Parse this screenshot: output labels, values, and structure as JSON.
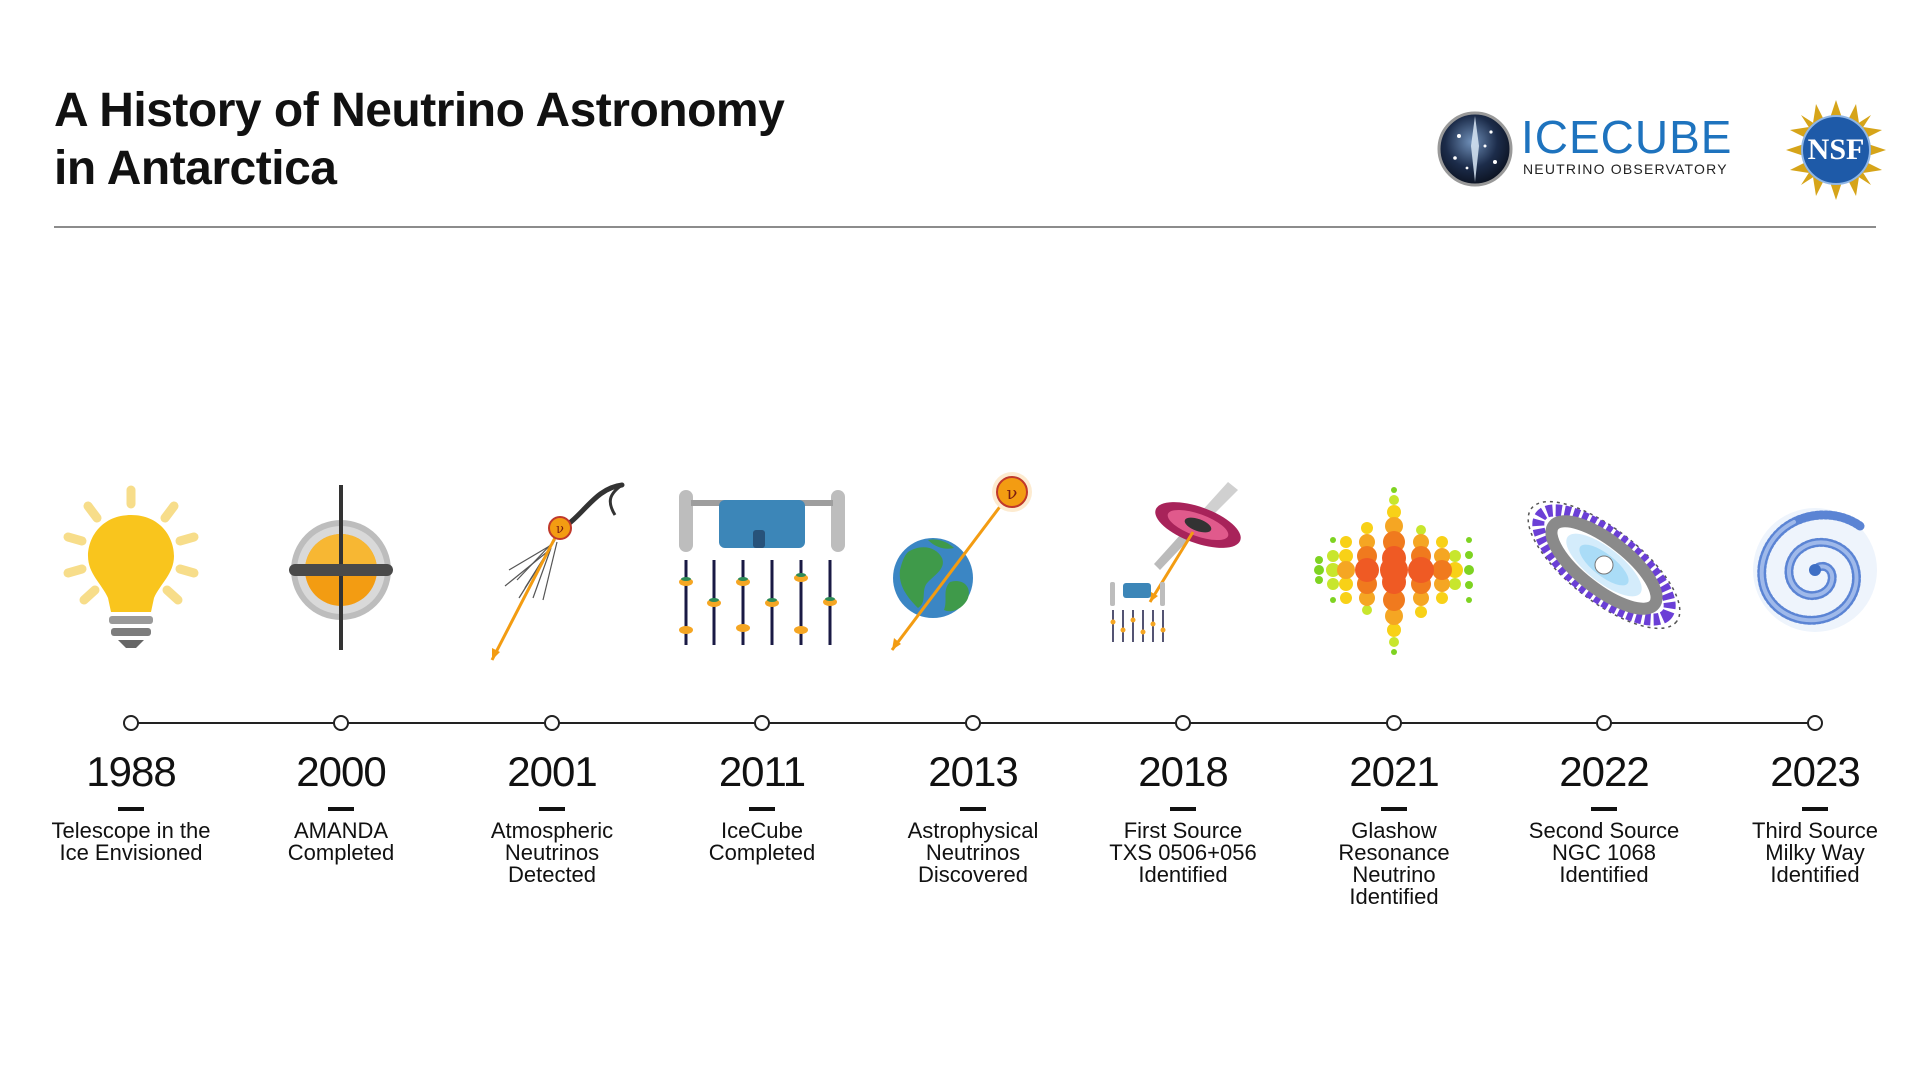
{
  "header": {
    "title_line1": "A History of Neutrino Astronomy",
    "title_line2": "in Antarctica"
  },
  "logos": {
    "icecube_name": "ICECUBE",
    "icecube_sub": "NEUTRINO OBSERVATORY",
    "nsf": "NSF"
  },
  "colors": {
    "accent_blue": "#1e73be",
    "orange": "#f39c12",
    "yellow": "#f9c51d",
    "neutrino_red": "#c0392b"
  },
  "events": [
    {
      "year": "1988",
      "lines": [
        "Telescope in the",
        "Ice Envisioned"
      ],
      "icon": "lightbulb-icon"
    },
    {
      "year": "2000",
      "lines": [
        "AMANDA",
        "Completed"
      ],
      "icon": "amanda-detector-icon"
    },
    {
      "year": "2001",
      "lines": [
        "Atmospheric",
        "Neutrinos",
        "Detected"
      ],
      "icon": "atmospheric-shower-icon"
    },
    {
      "year": "2011",
      "lines": [
        "IceCube",
        "Completed"
      ],
      "icon": "icecube-array-icon"
    },
    {
      "year": "2013",
      "lines": [
        "Astrophysical",
        "Neutrinos",
        "Discovered"
      ],
      "icon": "earth-neutrino-icon"
    },
    {
      "year": "2018",
      "lines": [
        "First Source",
        "TXS 0506+056",
        "Identified"
      ],
      "icon": "blazar-icon"
    },
    {
      "year": "2021",
      "lines": [
        "Glashow",
        "Resonance",
        "Neutrino",
        "Identified"
      ],
      "icon": "glashow-event-icon"
    },
    {
      "year": "2022",
      "lines": [
        "Second Source",
        "NGC 1068",
        "Identified"
      ],
      "icon": "seyfert-galaxy-icon"
    },
    {
      "year": "2023",
      "lines": [
        "Third Source",
        "Milky Way",
        "Identified"
      ],
      "icon": "milky-way-icon"
    }
  ]
}
